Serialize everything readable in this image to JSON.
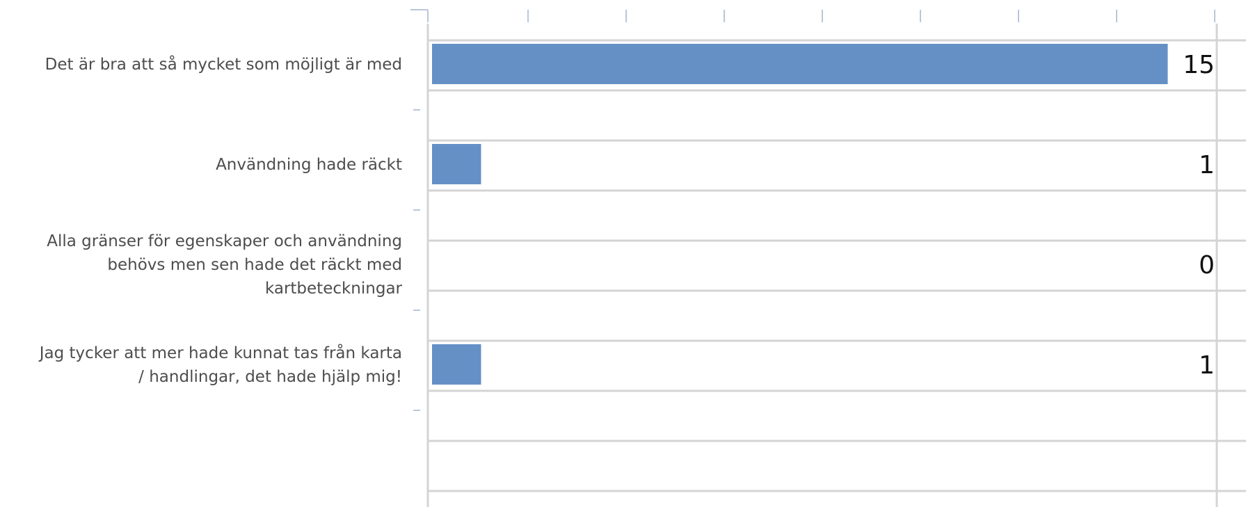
{
  "chart_data": {
    "type": "bar",
    "orientation": "horizontal",
    "categories": [
      [
        "Det är bra att så mycket som möjligt är med"
      ],
      [
        "Användning hade räckt"
      ],
      [
        "Alla gränser för egenskaper och användning",
        "behövs men sen hade det räckt med",
        "kartbeteckningar"
      ],
      [
        "Jag tycker att mer hade kunnat tas från karta",
        "/ handlingar, det hade hjälp mig!"
      ]
    ],
    "values": [
      15,
      1,
      0,
      1
    ],
    "data_labels": [
      "15",
      "1",
      "0",
      "1"
    ],
    "xlim": [
      0,
      16
    ],
    "grid": true,
    "legend": "none",
    "colors": {
      "bar": "#6490c6",
      "grid": "#d4d4d4",
      "tick": "#b9c7db",
      "label": "#4d4d4d",
      "value": "#111111"
    }
  }
}
